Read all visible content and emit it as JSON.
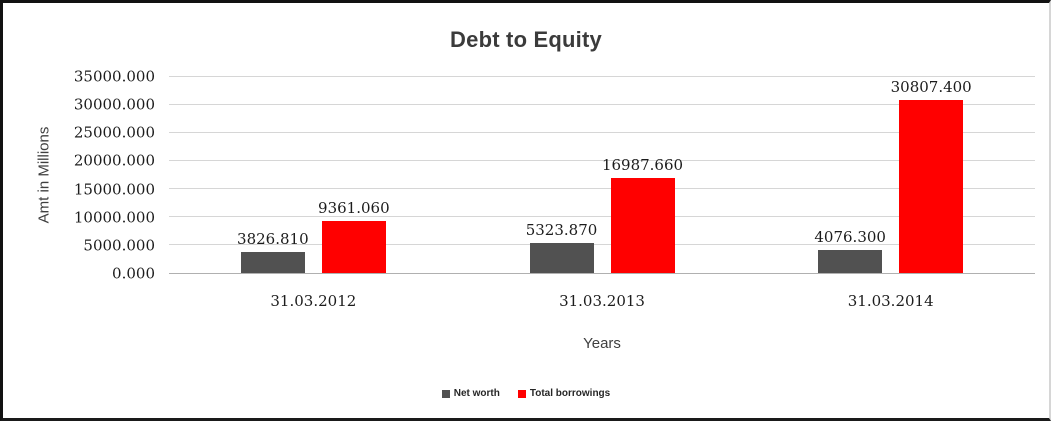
{
  "figure": {
    "title": "Debt to Equity",
    "x_axis_title": "Years",
    "y_axis_title": "Amt in Millions"
  },
  "chart_data": {
    "type": "bar",
    "title": "Debt to Equity",
    "xlabel": "Years",
    "ylabel": "Amt in Millions",
    "categories": [
      "31.03.2012",
      "31.03.2013",
      "31.03.2014"
    ],
    "series": [
      {
        "name": "Net worth",
        "color": "#515151",
        "values": [
          3826.81,
          5323.87,
          4076.3
        ],
        "labels": [
          "3826.810",
          "5323.870",
          "4076.300"
        ]
      },
      {
        "name": "Total borrowings",
        "color": "#ff0000",
        "values": [
          9361.06,
          16987.66,
          30807.4
        ],
        "labels": [
          "9361.060",
          "16987.660",
          "30807.400"
        ]
      }
    ],
    "ylim": [
      0,
      35000
    ],
    "y_tick_labels": [
      "0.000",
      "5000.000",
      "10000.000",
      "15000.000",
      "20000.000",
      "25000.000",
      "30000.000",
      "35000.000"
    ],
    "grid": true,
    "legend_position": "bottom"
  },
  "colors": {
    "gridline": "#d6d6d6",
    "axis_line": "#b0b0b0",
    "net_worth_bar": "#515151",
    "total_borrowings_bar": "#ff0000",
    "title_text": "#3b3b3b"
  }
}
